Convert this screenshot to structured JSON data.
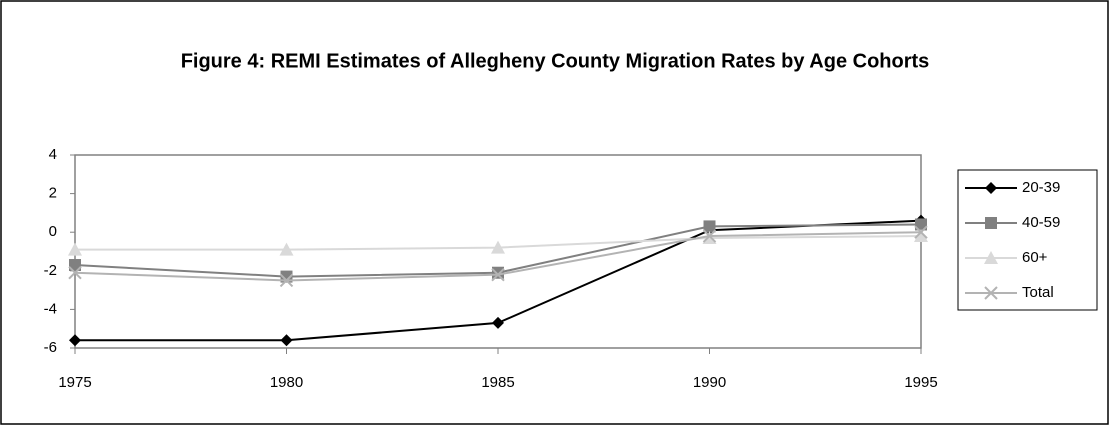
{
  "chart_data": {
    "type": "line",
    "title": "Figure 4: REMI Estimates of Allegheny County Migration Rates by Age Cohorts",
    "x": [
      1975,
      1980,
      1985,
      1990,
      1995
    ],
    "xlim": [
      1975,
      1995
    ],
    "xticks": [
      1975,
      1980,
      1985,
      1990,
      1995
    ],
    "ylim": [
      -6,
      4
    ],
    "yticks": [
      -6,
      -4,
      -2,
      0,
      2,
      4
    ],
    "legend": "right",
    "series": [
      {
        "name": "20-39",
        "color": "#000000",
        "marker": "diamond",
        "values": [
          -5.6,
          -5.6,
          -4.7,
          0.1,
          0.6
        ]
      },
      {
        "name": "40-59",
        "color": "#808080",
        "marker": "square",
        "values": [
          -1.7,
          -2.3,
          -2.1,
          0.3,
          0.4
        ]
      },
      {
        "name": "60+",
        "color": "#d9d9d9",
        "marker": "triangle",
        "values": [
          -0.9,
          -0.9,
          -0.8,
          -0.3,
          -0.2
        ]
      },
      {
        "name": "Total",
        "color": "#b3b3b3",
        "marker": "x",
        "values": [
          -2.1,
          -2.5,
          -2.2,
          -0.2,
          0.0
        ]
      }
    ]
  }
}
